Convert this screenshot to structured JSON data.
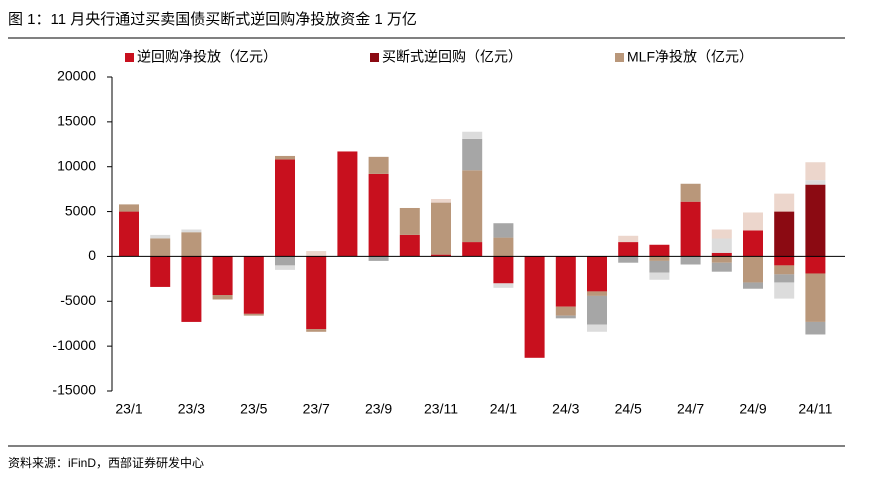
{
  "chart_data": {
    "type": "stacked_bar",
    "title": "图 1：11 月央行通过买卖国债买断式逆回购净投放资金 1 万亿",
    "source": "资料来源：iFinD，西部证券研发中心",
    "categories": [
      "23/1",
      null,
      "23/3",
      null,
      "23/5",
      null,
      "23/7",
      null,
      "23/9",
      null,
      "23/11",
      null,
      "24/1",
      null,
      "24/3",
      null,
      "24/5",
      null,
      "24/7",
      null,
      "24/9",
      null,
      "24/11"
    ],
    "series": [
      {
        "name": "逆回购净投放（亿元）",
        "color": "#c8101e",
        "values": [
          5000,
          -3400,
          -7300,
          -4300,
          -6400,
          10800,
          -8100,
          11700,
          9200,
          2400,
          200,
          1600,
          -3000,
          -11300,
          -5600,
          -3900,
          1600,
          1300,
          6100,
          400,
          2900,
          -1000,
          -1900
        ]
      },
      {
        "name": "买断式逆回购（亿元）",
        "color": "#8b0a12",
        "values": [
          0,
          0,
          0,
          0,
          0,
          0,
          0,
          0,
          0,
          0,
          0,
          0,
          0,
          0,
          0,
          0,
          0,
          0,
          0,
          0,
          0,
          5000,
          8000
        ]
      },
      {
        "name": "MLF净投放（亿元）",
        "color": "#b9977a",
        "values": [
          800,
          2000,
          2700,
          -500,
          -200,
          400,
          -300,
          0,
          1900,
          3000,
          5800,
          8000,
          2100,
          0,
          -1000,
          -500,
          0,
          -500,
          2000,
          -700,
          -2900,
          -1000,
          -5400
        ]
      },
      {
        "color": "#a6a6a6",
        "values": [
          0,
          0,
          0,
          0,
          0,
          -1000,
          0,
          0,
          -500,
          0,
          0,
          3500,
          1600,
          0,
          -300,
          -3200,
          -700,
          -1300,
          -900,
          -1000,
          -700,
          -900,
          -1400
        ]
      },
      {
        "color": "#dcdcdc",
        "values": [
          0,
          400,
          300,
          0,
          0,
          -500,
          0,
          0,
          0,
          0,
          0,
          800,
          -500,
          0,
          0,
          -800,
          0,
          -800,
          0,
          1600,
          0,
          -1800,
          500
        ]
      },
      {
        "color": "#ecd6cc",
        "values": [
          0,
          0,
          0,
          0,
          0,
          0,
          600,
          0,
          0,
          0,
          400,
          0,
          0,
          0,
          0,
          0,
          700,
          0,
          0,
          1000,
          2000,
          2000,
          2000
        ]
      }
    ],
    "ylim": [
      -15000,
      20000
    ],
    "yticks": [
      -15000,
      -10000,
      -5000,
      0,
      5000,
      10000,
      15000,
      20000
    ]
  }
}
